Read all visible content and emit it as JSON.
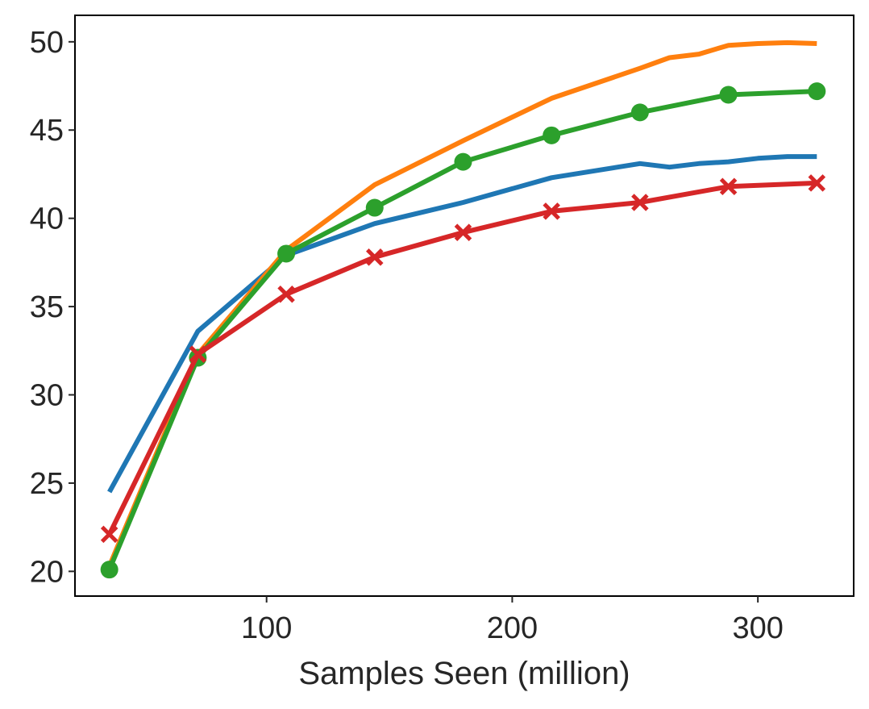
{
  "chart_data": {
    "type": "line",
    "title": "",
    "xlabel": "Samples Seen (million)",
    "ylabel": "",
    "xlim": [
      22,
      339
    ],
    "ylim": [
      18.6,
      51.5
    ],
    "xticks": [
      100,
      200,
      300
    ],
    "xtick_labels": [
      "100",
      "200",
      "300"
    ],
    "yticks": [
      20,
      25,
      30,
      35,
      40,
      45,
      50
    ],
    "ytick_labels": [
      "20",
      "25",
      "30",
      "35",
      "40",
      "45",
      "50"
    ],
    "grid": false,
    "legend": null,
    "series": [
      {
        "name": "blue",
        "color": "#1f77b4",
        "marker": "none",
        "x": [
          36,
          72,
          108,
          144,
          180,
          216,
          252,
          264,
          276,
          288,
          300,
          312,
          324
        ],
        "y": [
          24.5,
          33.6,
          37.9,
          39.7,
          40.9,
          42.3,
          43.1,
          42.9,
          43.1,
          43.2,
          43.4,
          43.5,
          43.5
        ]
      },
      {
        "name": "orange",
        "color": "#ff7f0e",
        "marker": "none",
        "x": [
          36,
          72,
          108,
          144,
          180,
          216,
          252,
          264,
          276,
          288,
          300,
          312,
          324
        ],
        "y": [
          20.3,
          32.3,
          38.2,
          41.9,
          44.4,
          46.8,
          48.5,
          49.1,
          49.3,
          49.8,
          49.9,
          49.95,
          49.9
        ]
      },
      {
        "name": "green",
        "color": "#2ca02c",
        "marker": "circle",
        "x": [
          36,
          72,
          108,
          144,
          180,
          216,
          252,
          288,
          324
        ],
        "y": [
          20.1,
          32.1,
          38.0,
          40.6,
          43.2,
          44.7,
          46.0,
          47.0,
          47.2
        ]
      },
      {
        "name": "red",
        "color": "#d62728",
        "marker": "x",
        "x": [
          36,
          72,
          108,
          144,
          180,
          216,
          252,
          288,
          324
        ],
        "y": [
          22.1,
          32.3,
          35.7,
          37.8,
          39.2,
          40.4,
          40.9,
          41.8,
          42.0
        ]
      }
    ]
  }
}
